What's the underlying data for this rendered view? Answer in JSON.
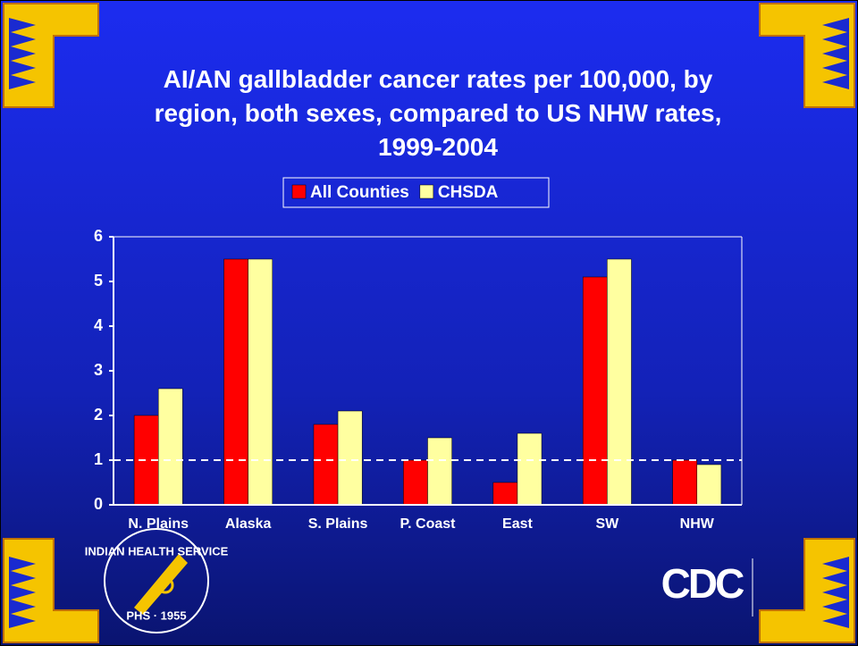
{
  "chart_data": {
    "type": "bar",
    "title": "AI/AN gallbladder cancer rates per 100,000, by region, both sexes, compared to US NHW rates, 1999-2004",
    "categories": [
      "N. Plains",
      "Alaska",
      "S. Plains",
      "P. Coast",
      "East",
      "SW",
      "NHW"
    ],
    "series": [
      {
        "name": "All Counties",
        "color": "#ff0000",
        "values": [
          2.0,
          5.5,
          1.8,
          1.0,
          0.5,
          5.1,
          1.0
        ]
      },
      {
        "name": "CHSDA",
        "color": "#ffffa0",
        "values": [
          2.6,
          5.5,
          2.1,
          1.5,
          1.6,
          5.5,
          0.9
        ]
      }
    ],
    "ylim": [
      0,
      6
    ],
    "yticks": [
      0,
      1,
      2,
      3,
      4,
      5,
      6
    ],
    "reference_line": 1,
    "grid": false
  },
  "logos": {
    "ihs": "INDIAN HEALTH SERVICE",
    "ihs_sub": "PHS · 1955",
    "cdc": "CDC"
  }
}
